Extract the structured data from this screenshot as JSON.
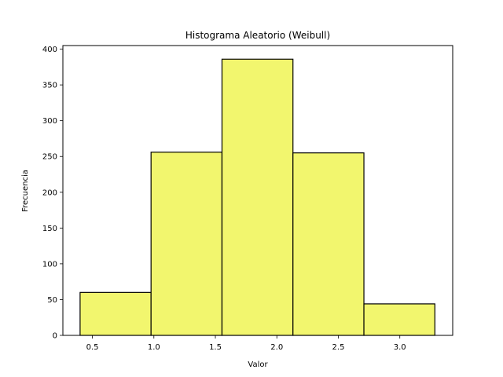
{
  "chart_data": {
    "type": "bar",
    "title": "Histograma Aleatorio (Weibull)",
    "xlabel": "Valor",
    "ylabel": "Frecuencia",
    "bin_edges": [
      0.4,
      0.977,
      1.554,
      2.131,
      2.708,
      3.285
    ],
    "values": [
      60,
      256,
      386,
      255,
      44
    ],
    "xlim": [
      0.26,
      3.43
    ],
    "ylim": [
      0,
      405
    ],
    "xticks": [
      0.5,
      1.0,
      1.5,
      2.0,
      2.5,
      3.0
    ],
    "xtick_labels": [
      "0.5",
      "1.0",
      "1.5",
      "2.0",
      "2.5",
      "3.0"
    ],
    "yticks": [
      0,
      50,
      100,
      150,
      200,
      250,
      300,
      350,
      400
    ],
    "ytick_labels": [
      "0",
      "50",
      "100",
      "150",
      "200",
      "250",
      "300",
      "350",
      "400"
    ],
    "bar_color": "#f2f66e",
    "edge_color": "#000000",
    "grid": false,
    "legend": "none"
  }
}
